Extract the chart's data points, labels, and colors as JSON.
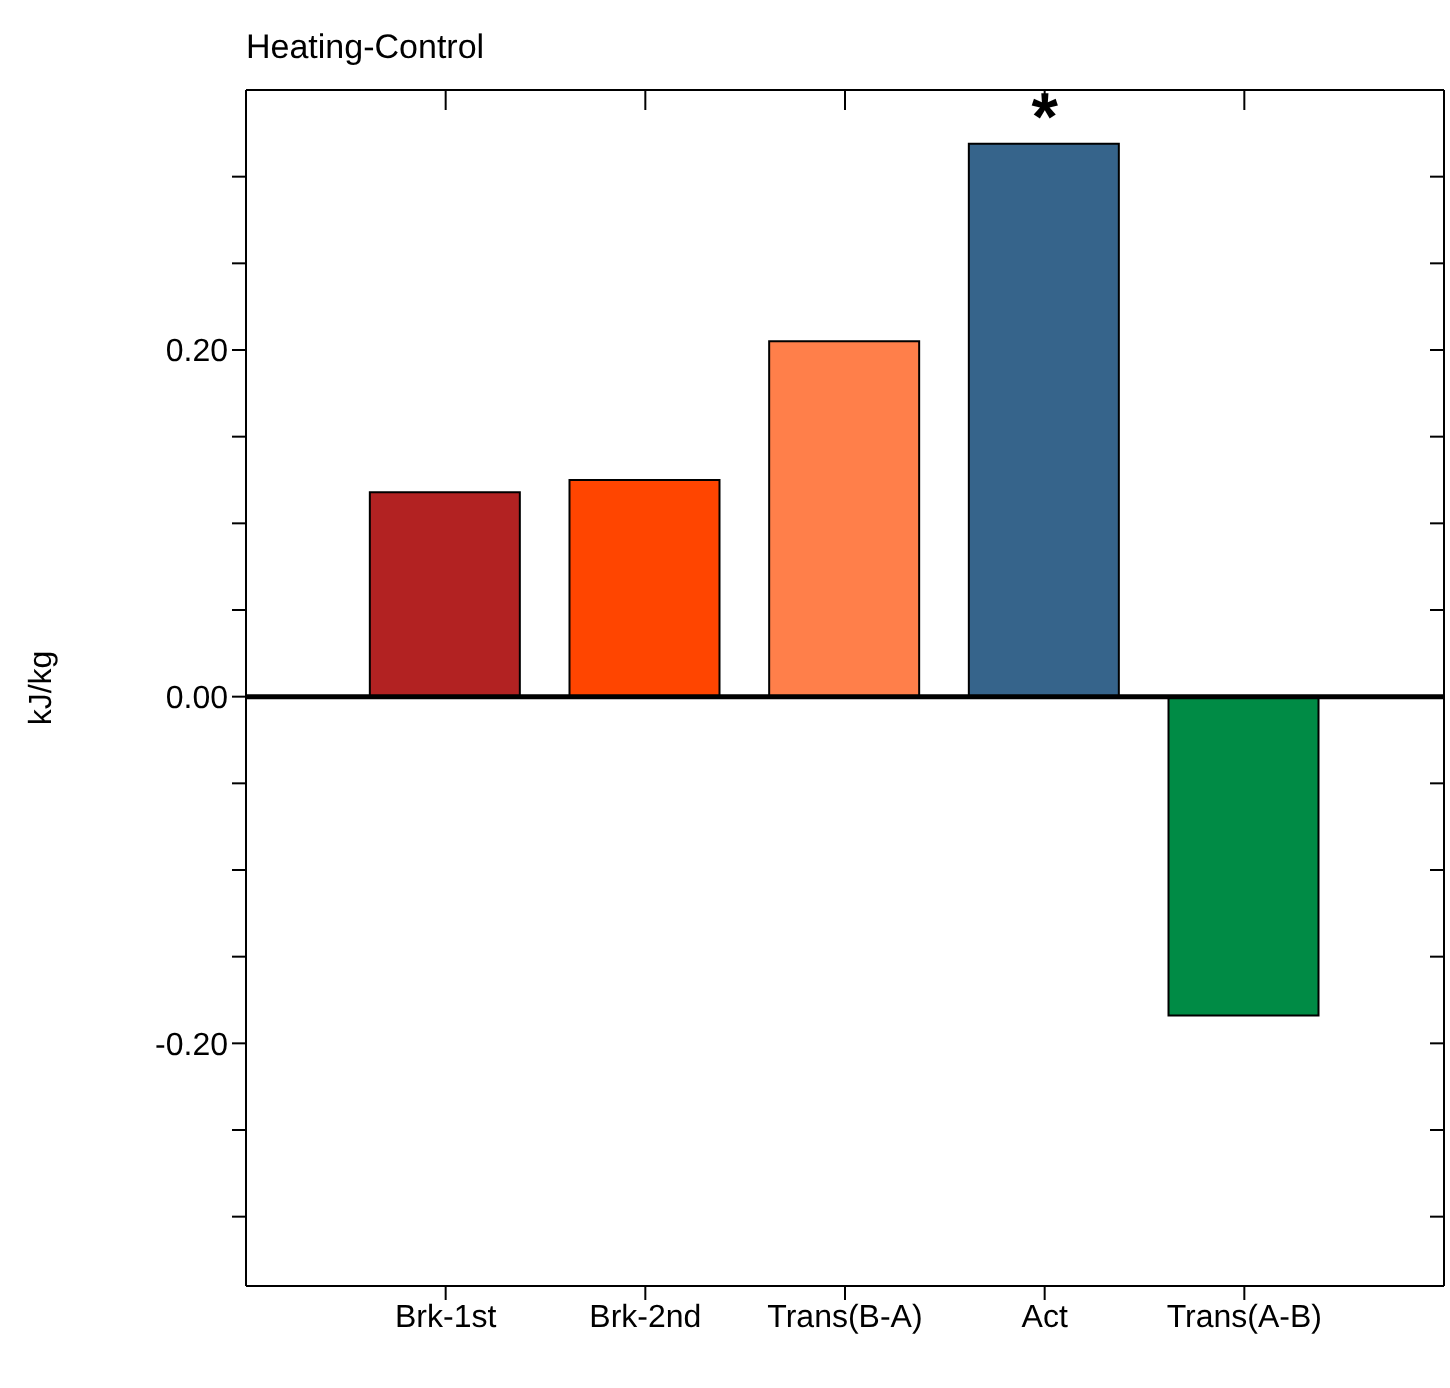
{
  "chart_data": {
    "type": "bar",
    "title": "Heating-Control",
    "ylabel": "kJ/kg",
    "categories": [
      "Brk-1st",
      "Brk-2nd",
      "Trans(B-A)",
      "Act",
      "Trans(A-B)"
    ],
    "values": [
      0.118,
      0.125,
      0.205,
      0.319,
      -0.184
    ],
    "colors": [
      "#b22222",
      "#ff4500",
      "#ff7f4a",
      "#36648b",
      "#008b45"
    ],
    "ylim": [
      -0.34,
      0.35
    ],
    "yticks": [
      {
        "value": -0.3,
        "label": null
      },
      {
        "value": -0.25,
        "label": null
      },
      {
        "value": -0.2,
        "label": "-0.20"
      },
      {
        "value": -0.15,
        "label": null
      },
      {
        "value": -0.1,
        "label": null
      },
      {
        "value": -0.05,
        "label": null
      },
      {
        "value": 0,
        "label": "0.00"
      },
      {
        "value": 0.05,
        "label": null
      },
      {
        "value": 0.1,
        "label": null
      },
      {
        "value": 0.15,
        "label": null
      },
      {
        "value": 0.2,
        "label": "0.20"
      },
      {
        "value": 0.25,
        "label": null
      },
      {
        "value": 0.3,
        "label": null
      }
    ],
    "ref_lines": [
      {
        "axis": "y",
        "value": 0,
        "color": "#000000"
      }
    ],
    "annotations": [
      {
        "text": "*",
        "x": "Act",
        "y": 0.319
      }
    ],
    "grid": false,
    "legend": false
  }
}
